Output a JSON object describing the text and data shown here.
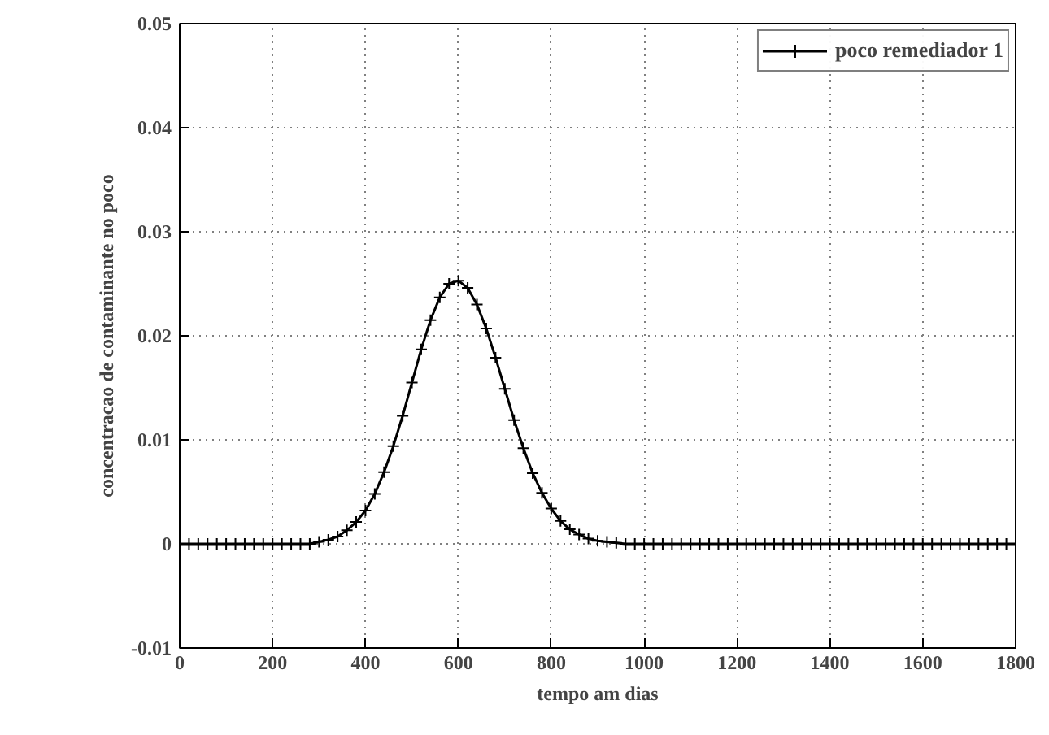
{
  "chart_data": {
    "type": "line",
    "xlabel": "tempo am dias",
    "ylabel": "concentracao de contaminante no poco",
    "x": [
      0,
      20,
      40,
      60,
      80,
      100,
      120,
      140,
      160,
      180,
      200,
      220,
      240,
      260,
      280,
      300,
      320,
      340,
      360,
      380,
      400,
      420,
      440,
      460,
      480,
      500,
      520,
      540,
      560,
      580,
      600,
      620,
      640,
      660,
      680,
      700,
      720,
      740,
      760,
      780,
      800,
      820,
      840,
      860,
      880,
      900,
      920,
      940,
      960,
      980,
      1000,
      1020,
      1040,
      1060,
      1080,
      1100,
      1120,
      1140,
      1160,
      1180,
      1200,
      1220,
      1240,
      1260,
      1280,
      1300,
      1320,
      1340,
      1360,
      1380,
      1400,
      1420,
      1440,
      1460,
      1480,
      1500,
      1520,
      1540,
      1560,
      1580,
      1600,
      1620,
      1640,
      1660,
      1680,
      1700,
      1720,
      1740,
      1760,
      1780,
      1800
    ],
    "series": [
      {
        "name": "poco remediador 1",
        "color": "#000000",
        "values": [
          0,
          0,
          0,
          0,
          0,
          0,
          0,
          0,
          0,
          0,
          0,
          0,
          0,
          0,
          0,
          0.0002,
          0.0004,
          0.0007,
          0.0013,
          0.0021,
          0.0032,
          0.0048,
          0.0069,
          0.0094,
          0.0123,
          0.0155,
          0.0187,
          0.0215,
          0.0237,
          0.025,
          0.0253,
          0.0246,
          0.023,
          0.0207,
          0.0179,
          0.0149,
          0.0119,
          0.0092,
          0.0068,
          0.0049,
          0.0034,
          0.0022,
          0.0014,
          0.0009,
          0.0005,
          0.0003,
          0.0002,
          0.0001,
          0,
          0,
          0,
          0,
          0,
          0,
          0,
          0,
          0,
          0,
          0,
          0,
          0,
          0,
          0,
          0,
          0,
          0,
          0,
          0,
          0,
          0,
          0,
          0,
          0,
          0,
          0,
          0,
          0,
          0,
          0,
          0,
          0,
          0,
          0,
          0,
          0,
          0,
          0,
          0,
          0,
          0,
          0
        ]
      }
    ],
    "xlim": [
      0,
      1800
    ],
    "xticks": [
      0,
      200,
      400,
      600,
      800,
      1000,
      1200,
      1400,
      1600,
      1800
    ],
    "ylim": [
      -0.01,
      0.05
    ],
    "yticks": [
      -0.01,
      0,
      0.01,
      0.02,
      0.03,
      0.04,
      0.05
    ],
    "grid": true,
    "legend": "top right",
    "marker": "cross",
    "line_style": "solid"
  }
}
